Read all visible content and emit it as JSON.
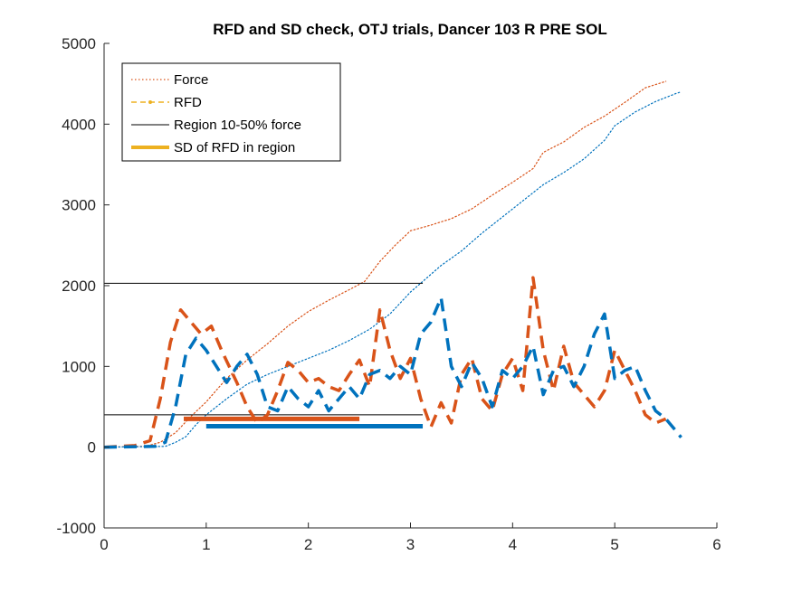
{
  "chart_data": {
    "type": "line",
    "title": "RFD and SD check, OTJ trials, Dancer 103 R PRE SOL",
    "xlabel": "",
    "ylabel": "",
    "xlim": [
      0,
      6
    ],
    "ylim": [
      -1000,
      5000
    ],
    "xticks": [
      "0",
      "1",
      "2",
      "3",
      "4",
      "5",
      "6"
    ],
    "yticks": [
      "-1000",
      "0",
      "1000",
      "2000",
      "3000",
      "4000",
      "5000"
    ],
    "grid": false,
    "legend_position": "top-left",
    "legend": [
      "Force",
      "RFD",
      "Region 10-50% force",
      "SD of RFD in region"
    ],
    "colors": {
      "blue": "#0072BD",
      "orange": "#D95319",
      "yellow": "#EDB120",
      "black": "#000000"
    },
    "force_series": [
      {
        "color": "#D95319",
        "points": [
          [
            0,
            0
          ],
          [
            0.4,
            10
          ],
          [
            0.55,
            60
          ],
          [
            0.7,
            180
          ],
          [
            0.85,
            380
          ],
          [
            1.0,
            560
          ],
          [
            1.2,
            850
          ],
          [
            1.4,
            1080
          ],
          [
            1.6,
            1280
          ],
          [
            1.8,
            1500
          ],
          [
            2.0,
            1680
          ],
          [
            2.2,
            1820
          ],
          [
            2.4,
            1950
          ],
          [
            2.55,
            2050
          ],
          [
            2.7,
            2300
          ],
          [
            2.85,
            2500
          ],
          [
            3.0,
            2680
          ],
          [
            3.2,
            2750
          ],
          [
            3.4,
            2830
          ],
          [
            3.6,
            2950
          ],
          [
            3.8,
            3120
          ],
          [
            4.0,
            3280
          ],
          [
            4.2,
            3450
          ],
          [
            4.3,
            3650
          ],
          [
            4.5,
            3780
          ],
          [
            4.7,
            3960
          ],
          [
            4.9,
            4100
          ],
          [
            5.1,
            4270
          ],
          [
            5.3,
            4450
          ],
          [
            5.5,
            4530
          ]
        ]
      },
      {
        "color": "#0072BD",
        "points": [
          [
            0,
            0
          ],
          [
            0.6,
            10
          ],
          [
            0.7,
            60
          ],
          [
            0.8,
            130
          ],
          [
            0.9,
            280
          ],
          [
            1.0,
            400
          ],
          [
            1.2,
            600
          ],
          [
            1.4,
            780
          ],
          [
            1.6,
            900
          ],
          [
            1.8,
            1000
          ],
          [
            2.0,
            1100
          ],
          [
            2.2,
            1200
          ],
          [
            2.4,
            1320
          ],
          [
            2.6,
            1460
          ],
          [
            2.8,
            1650
          ],
          [
            3.0,
            1920
          ],
          [
            3.1,
            2030
          ],
          [
            3.3,
            2250
          ],
          [
            3.5,
            2430
          ],
          [
            3.7,
            2650
          ],
          [
            3.9,
            2850
          ],
          [
            4.1,
            3050
          ],
          [
            4.3,
            3250
          ],
          [
            4.5,
            3400
          ],
          [
            4.7,
            3570
          ],
          [
            4.9,
            3800
          ],
          [
            5.0,
            3980
          ],
          [
            5.2,
            4150
          ],
          [
            5.4,
            4280
          ],
          [
            5.6,
            4380
          ],
          [
            5.65,
            4400
          ]
        ]
      }
    ],
    "rfd_series": [
      {
        "color": "#D95319",
        "points": [
          [
            0,
            0
          ],
          [
            0.3,
            20
          ],
          [
            0.45,
            80
          ],
          [
            0.55,
            600
          ],
          [
            0.65,
            1300
          ],
          [
            0.75,
            1700
          ],
          [
            0.85,
            1550
          ],
          [
            0.95,
            1400
          ],
          [
            1.05,
            1500
          ],
          [
            1.15,
            1200
          ],
          [
            1.3,
            800
          ],
          [
            1.4,
            500
          ],
          [
            1.5,
            300
          ],
          [
            1.6,
            400
          ],
          [
            1.7,
            700
          ],
          [
            1.8,
            1050
          ],
          [
            1.9,
            950
          ],
          [
            2.0,
            800
          ],
          [
            2.1,
            850
          ],
          [
            2.2,
            750
          ],
          [
            2.3,
            700
          ],
          [
            2.4,
            900
          ],
          [
            2.5,
            1080
          ],
          [
            2.6,
            750
          ],
          [
            2.7,
            1700
          ],
          [
            2.8,
            1200
          ],
          [
            2.9,
            850
          ],
          [
            3.0,
            1100
          ],
          [
            3.1,
            600
          ],
          [
            3.2,
            250
          ],
          [
            3.3,
            550
          ],
          [
            3.4,
            300
          ],
          [
            3.5,
            900
          ],
          [
            3.6,
            1100
          ],
          [
            3.7,
            600
          ],
          [
            3.8,
            450
          ],
          [
            3.9,
            900
          ],
          [
            4.0,
            1100
          ],
          [
            4.1,
            700
          ],
          [
            4.2,
            2100
          ],
          [
            4.3,
            1200
          ],
          [
            4.4,
            700
          ],
          [
            4.5,
            1250
          ],
          [
            4.6,
            800
          ],
          [
            4.7,
            650
          ],
          [
            4.8,
            500
          ],
          [
            4.9,
            700
          ],
          [
            5.0,
            1200
          ],
          [
            5.1,
            950
          ],
          [
            5.2,
            700
          ],
          [
            5.3,
            400
          ],
          [
            5.4,
            300
          ],
          [
            5.5,
            350
          ]
        ]
      },
      {
        "color": "#0072BD",
        "points": [
          [
            0,
            0
          ],
          [
            0.5,
            10
          ],
          [
            0.6,
            60
          ],
          [
            0.7,
            500
          ],
          [
            0.8,
            1150
          ],
          [
            0.9,
            1350
          ],
          [
            1.0,
            1200
          ],
          [
            1.1,
            1000
          ],
          [
            1.2,
            800
          ],
          [
            1.3,
            1000
          ],
          [
            1.4,
            1150
          ],
          [
            1.5,
            900
          ],
          [
            1.6,
            500
          ],
          [
            1.7,
            450
          ],
          [
            1.8,
            750
          ],
          [
            1.9,
            600
          ],
          [
            2.0,
            500
          ],
          [
            2.1,
            700
          ],
          [
            2.2,
            450
          ],
          [
            2.3,
            600
          ],
          [
            2.4,
            750
          ],
          [
            2.5,
            600
          ],
          [
            2.6,
            900
          ],
          [
            2.7,
            950
          ],
          [
            2.8,
            850
          ],
          [
            2.9,
            1000
          ],
          [
            3.0,
            900
          ],
          [
            3.1,
            1400
          ],
          [
            3.2,
            1550
          ],
          [
            3.3,
            1850
          ],
          [
            3.4,
            1000
          ],
          [
            3.5,
            750
          ],
          [
            3.6,
            1050
          ],
          [
            3.7,
            850
          ],
          [
            3.8,
            500
          ],
          [
            3.9,
            950
          ],
          [
            4.0,
            850
          ],
          [
            4.1,
            1000
          ],
          [
            4.2,
            1250
          ],
          [
            4.3,
            650
          ],
          [
            4.4,
            950
          ],
          [
            4.5,
            1000
          ],
          [
            4.6,
            750
          ],
          [
            4.7,
            1000
          ],
          [
            4.8,
            1400
          ],
          [
            4.9,
            1650
          ],
          [
            5.0,
            850
          ],
          [
            5.1,
            950
          ],
          [
            5.2,
            1000
          ],
          [
            5.3,
            700
          ],
          [
            5.4,
            450
          ],
          [
            5.5,
            350
          ],
          [
            5.6,
            200
          ],
          [
            5.65,
            120
          ]
        ]
      }
    ],
    "region_lines": [
      {
        "color": "#000000",
        "x": [
          0,
          3.12
        ],
        "y": 2030
      },
      {
        "color": "#000000",
        "x": [
          0,
          3.12
        ],
        "y": 400
      }
    ],
    "sd_bars": [
      {
        "color": "#D95319",
        "x": [
          0.78,
          2.5
        ],
        "y": 350
      },
      {
        "color": "#0072BD",
        "x": [
          1.0,
          3.12
        ],
        "y": 260
      }
    ]
  }
}
